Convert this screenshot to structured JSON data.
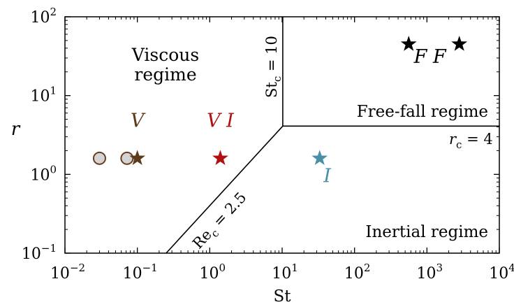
{
  "chart_data": {
    "type": "scatter",
    "title": "",
    "xlabel": "St",
    "ylabel": "r",
    "x_scale": "log",
    "y_scale": "log",
    "xlim": [
      0.01,
      10000
    ],
    "ylim": [
      0.1,
      100
    ],
    "grid": false,
    "x_ticks": [
      {
        "value": 0.01,
        "base": "10",
        "exp": "−2"
      },
      {
        "value": 0.1,
        "base": "10",
        "exp": "−1"
      },
      {
        "value": 1,
        "base": "10",
        "exp": "0"
      },
      {
        "value": 10,
        "base": "10",
        "exp": "1"
      },
      {
        "value": 100,
        "base": "10",
        "exp": "2"
      },
      {
        "value": 1000,
        "base": "10",
        "exp": "3"
      },
      {
        "value": 10000,
        "base": "10",
        "exp": "4"
      }
    ],
    "y_ticks": [
      {
        "value": 0.1,
        "base": "10",
        "exp": "−1"
      },
      {
        "value": 1,
        "base": "10",
        "exp": "0"
      },
      {
        "value": 10,
        "base": "10",
        "exp": "1"
      },
      {
        "value": 100,
        "base": "10",
        "exp": "2"
      }
    ],
    "circles": [
      {
        "x": 0.03,
        "y": 1.6,
        "color": "#d4d4d4",
        "stroke": "#6b3b1f"
      },
      {
        "x": 0.072,
        "y": 1.6,
        "color": "#d4d4d4",
        "stroke": "#6b3b1f"
      }
    ],
    "stars": [
      {
        "x": 0.1,
        "y": 1.6,
        "color": "#5c3a1a"
      },
      {
        "x": 1.4,
        "y": 1.6,
        "color": "#b01010"
      },
      {
        "x": 33,
        "y": 1.6,
        "color": "#4a8fa8"
      },
      {
        "x": 560,
        "y": 45,
        "color": "#000000"
      },
      {
        "x": 2800,
        "y": 45,
        "color": "#000000"
      }
    ],
    "boundaries": [
      {
        "name": "st-critical",
        "points": [
          [
            10.2,
            4.1
          ],
          [
            10.2,
            100
          ]
        ]
      },
      {
        "name": "r-critical",
        "points": [
          [
            10.2,
            4.1
          ],
          [
            10000,
            4.1
          ]
        ]
      },
      {
        "name": "re-critical",
        "points": [
          [
            0.25,
            0.1
          ],
          [
            10.2,
            4.1
          ]
        ]
      }
    ],
    "point_labels": [
      {
        "name": "label-v",
        "text": "V",
        "x": 0.1,
        "y": 4.0,
        "color": "#5c3a1a"
      },
      {
        "name": "label-vi",
        "text": "V I",
        "x": 1.4,
        "y": 4.0,
        "color": "#b01010"
      },
      {
        "name": "label-i",
        "text": "I",
        "x": 42,
        "y": 0.8,
        "color": "#4a8fa8"
      },
      {
        "name": "label-ff",
        "text": "F F",
        "x": 1100,
        "y": 26,
        "color": "#000000"
      }
    ],
    "regime_labels": {
      "viscous_line1": "Viscous",
      "viscous_line2": "regime",
      "freefall": "Free-fall regime",
      "inertial": "Inertial regime"
    },
    "boundary_labels": {
      "st_c": {
        "main": "St",
        "sub": "c",
        "rest": " = 10"
      },
      "r_c": {
        "main": "r",
        "sub": "c",
        "rest": " = 4"
      },
      "re_c": {
        "main": "Re",
        "sub": "c",
        "rest": " = 2.5"
      }
    }
  }
}
